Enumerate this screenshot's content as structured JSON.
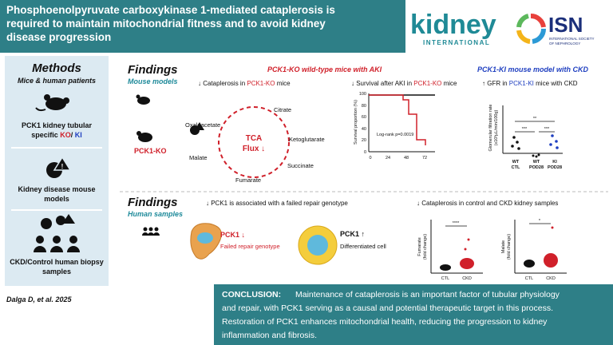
{
  "header": {
    "title_lines": [
      "Phosphoenolpyruvate carboxykinase 1-mediated cataplerosis is",
      "required to maintain mitochondrial fitness and to avoid kidney",
      "disease progression"
    ],
    "journal": "kidney",
    "journal_sub": "INTERNATIONAL",
    "society": "ISN",
    "society_sub": [
      "INTERNATIONAL SOCIETY",
      "OF NEPHROLOGY"
    ]
  },
  "methods": {
    "title": "Methods",
    "subtitle": "Mice & human patients",
    "item1": [
      "PCK1 kidney tubular",
      "specific ",
      "KO",
      "/ ",
      "KI"
    ],
    "item2": [
      "Kidney disease mouse",
      "models"
    ],
    "item3": [
      "CKD/Control human biopsy",
      "samples"
    ]
  },
  "mouse": {
    "heading": "Findings",
    "sub": "Mouse models",
    "ko_title": "PCK1-KO wild-type mice with AKI",
    "ki_title": "PCK1-KI mouse model with CKD",
    "cataplerosis": [
      "↓ Cataplerosis in ",
      "PCK1-KO",
      " mice"
    ],
    "survival": [
      "↓ Survival after AKI in ",
      "PCK1-KO",
      " mice"
    ],
    "gfr": [
      "↑ GFR in ",
      "PCK1-KI",
      " mice  with CKD"
    ],
    "tca": {
      "center": [
        "TCA",
        "Flux ↓"
      ],
      "metabolites": [
        "Citrate",
        "Oxaloacetate",
        "Ketoglutarate",
        "Succinate",
        "Fumarate",
        "Malate"
      ],
      "label": "PCK1-KO"
    },
    "survival_plot": {
      "yticks": [
        "100",
        "80",
        "60",
        "40",
        "20",
        "0"
      ],
      "xticks": [
        "0",
        "24",
        "48",
        "72"
      ],
      "ylabel": "Survival proportion (%)",
      "annotation": "Log-rank p=0.0019"
    },
    "gfr_plot": {
      "ylabel": [
        "Glomerular filtration rate",
        "(x10³µL/min/100g)"
      ],
      "groups": [
        [
          "WT",
          "CTL"
        ],
        [
          "WT",
          "POD28"
        ],
        [
          "KI",
          "POD28"
        ]
      ],
      "stars": [
        "***",
        "***",
        "**"
      ]
    }
  },
  "human": {
    "heading": "Findings",
    "sub": "Human samples",
    "repair": "↓ PCK1 is associated with a failed repair genotype",
    "cataplerosis": "↓ Cataplerosis  in control and CKD kidney samples",
    "failed": [
      "PCK1 ↓",
      "Failed repair genotype"
    ],
    "differentiated": [
      "PCK1 ↑",
      "Differentiated cell"
    ],
    "fumarate_plot": {
      "ylabel": [
        "Fumarate",
        "(fold change)"
      ],
      "groups": [
        "CTL",
        "CKD"
      ],
      "stars": "****"
    },
    "malate_plot": {
      "ylabel": [
        "Malate",
        "(fold change)"
      ],
      "groups": [
        "CTL",
        "CKD"
      ],
      "stars": "*"
    }
  },
  "citation": "Dalga D, et al. 2025",
  "conclusion": {
    "label": "CONCLUSION:",
    "lines": [
      "Maintenance of cataplerosis is an important factor of tubular physiology",
      "and repair, with PCK1 serving as a causal and potential therapeutic target in this process.",
      "Restoration of PCK1 enhances mitochondrial health, reducing the progression to kidney",
      "inflammation and fibrosis."
    ]
  }
}
